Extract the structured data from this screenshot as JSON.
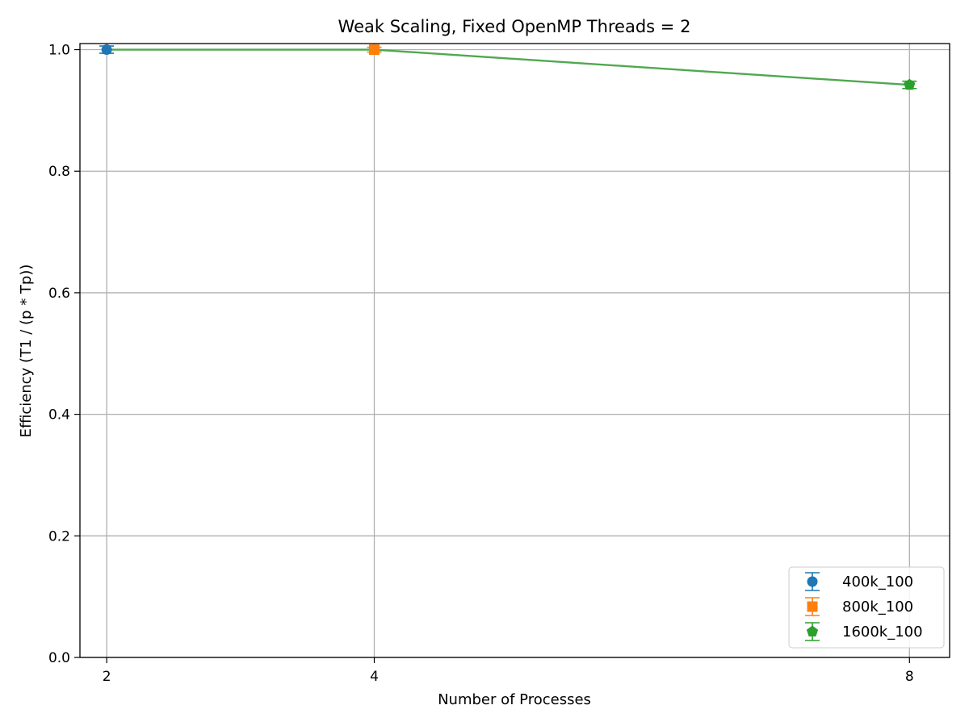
{
  "chart_data": {
    "type": "scatter",
    "title": "Weak Scaling, Fixed OpenMP Threads = 2",
    "xlabel": "Number of Processes",
    "ylabel": "Efficiency (T1 / (p * Tp))",
    "xlim": [
      1.8,
      8.3
    ],
    "ylim": [
      0.0,
      1.01
    ],
    "xticks": [
      "2",
      "4",
      "8"
    ],
    "yticks": [
      "0.0",
      "0.2",
      "0.4",
      "0.6",
      "0.8",
      "1.0"
    ],
    "grid": true,
    "legend_position": "bottom-right",
    "trend_line": {
      "color": "#4fa84f",
      "x": [
        2,
        4,
        8
      ],
      "y": [
        1.0,
        1.0,
        0.942
      ]
    },
    "series": [
      {
        "name": "400k_100",
        "color": "#1f77b4",
        "marker": "circle",
        "x": [
          2
        ],
        "y": [
          1.0
        ],
        "error": [
          0.006
        ]
      },
      {
        "name": "800k_100",
        "color": "#ff7f0e",
        "marker": "square",
        "x": [
          4
        ],
        "y": [
          1.0
        ],
        "error": [
          0.004
        ]
      },
      {
        "name": "1600k_100",
        "color": "#2ca02c",
        "marker": "pentagon",
        "x": [
          8
        ],
        "y": [
          0.942
        ],
        "error": [
          0.006
        ]
      }
    ]
  }
}
